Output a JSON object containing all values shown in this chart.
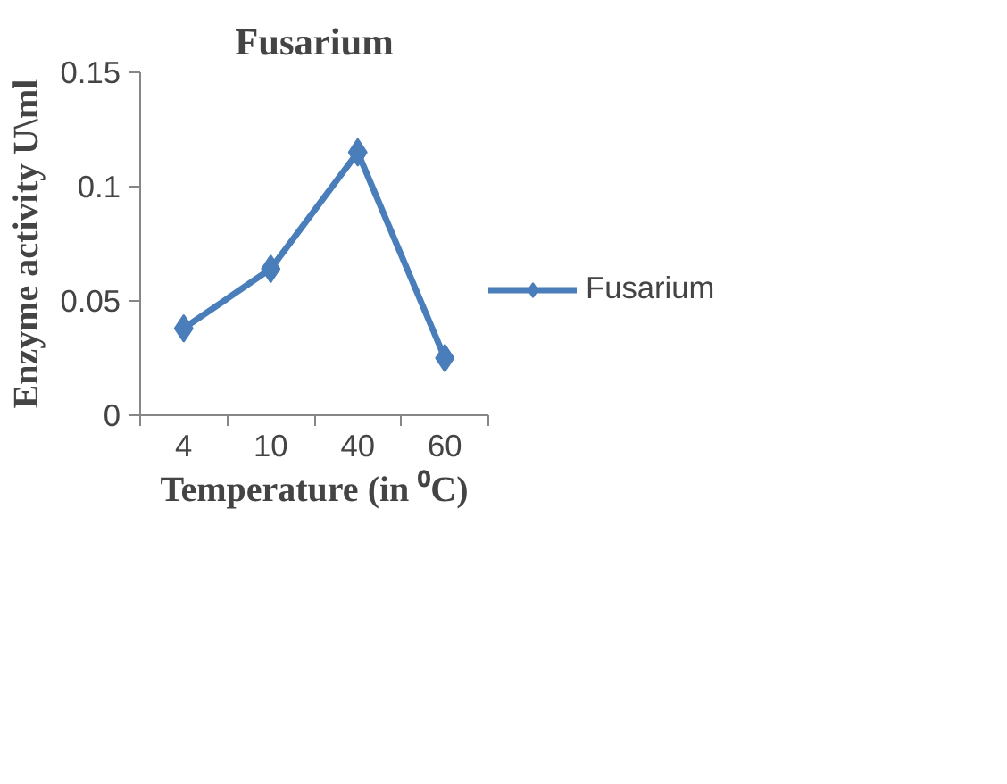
{
  "chart_data": {
    "type": "line",
    "title": "Fusarium",
    "xlabel": "Temperature (in ⁰C)",
    "ylabel": "Enzyme activity U\\ml",
    "categories": [
      "4",
      "10",
      "40",
      "60"
    ],
    "series": [
      {
        "name": "Fusarium",
        "color": "#4a7ebb",
        "values": [
          0.038,
          0.064,
          0.115,
          0.025
        ]
      }
    ],
    "ylim": [
      0,
      0.15
    ],
    "yticks": [
      {
        "value": 0,
        "label": "0"
      },
      {
        "value": 0.05,
        "label": "0.05"
      },
      {
        "value": 0.1,
        "label": "0.1"
      },
      {
        "value": 0.15,
        "label": "0.15"
      }
    ],
    "legend": "right",
    "marker": "diamond",
    "line_style": "solid"
  }
}
